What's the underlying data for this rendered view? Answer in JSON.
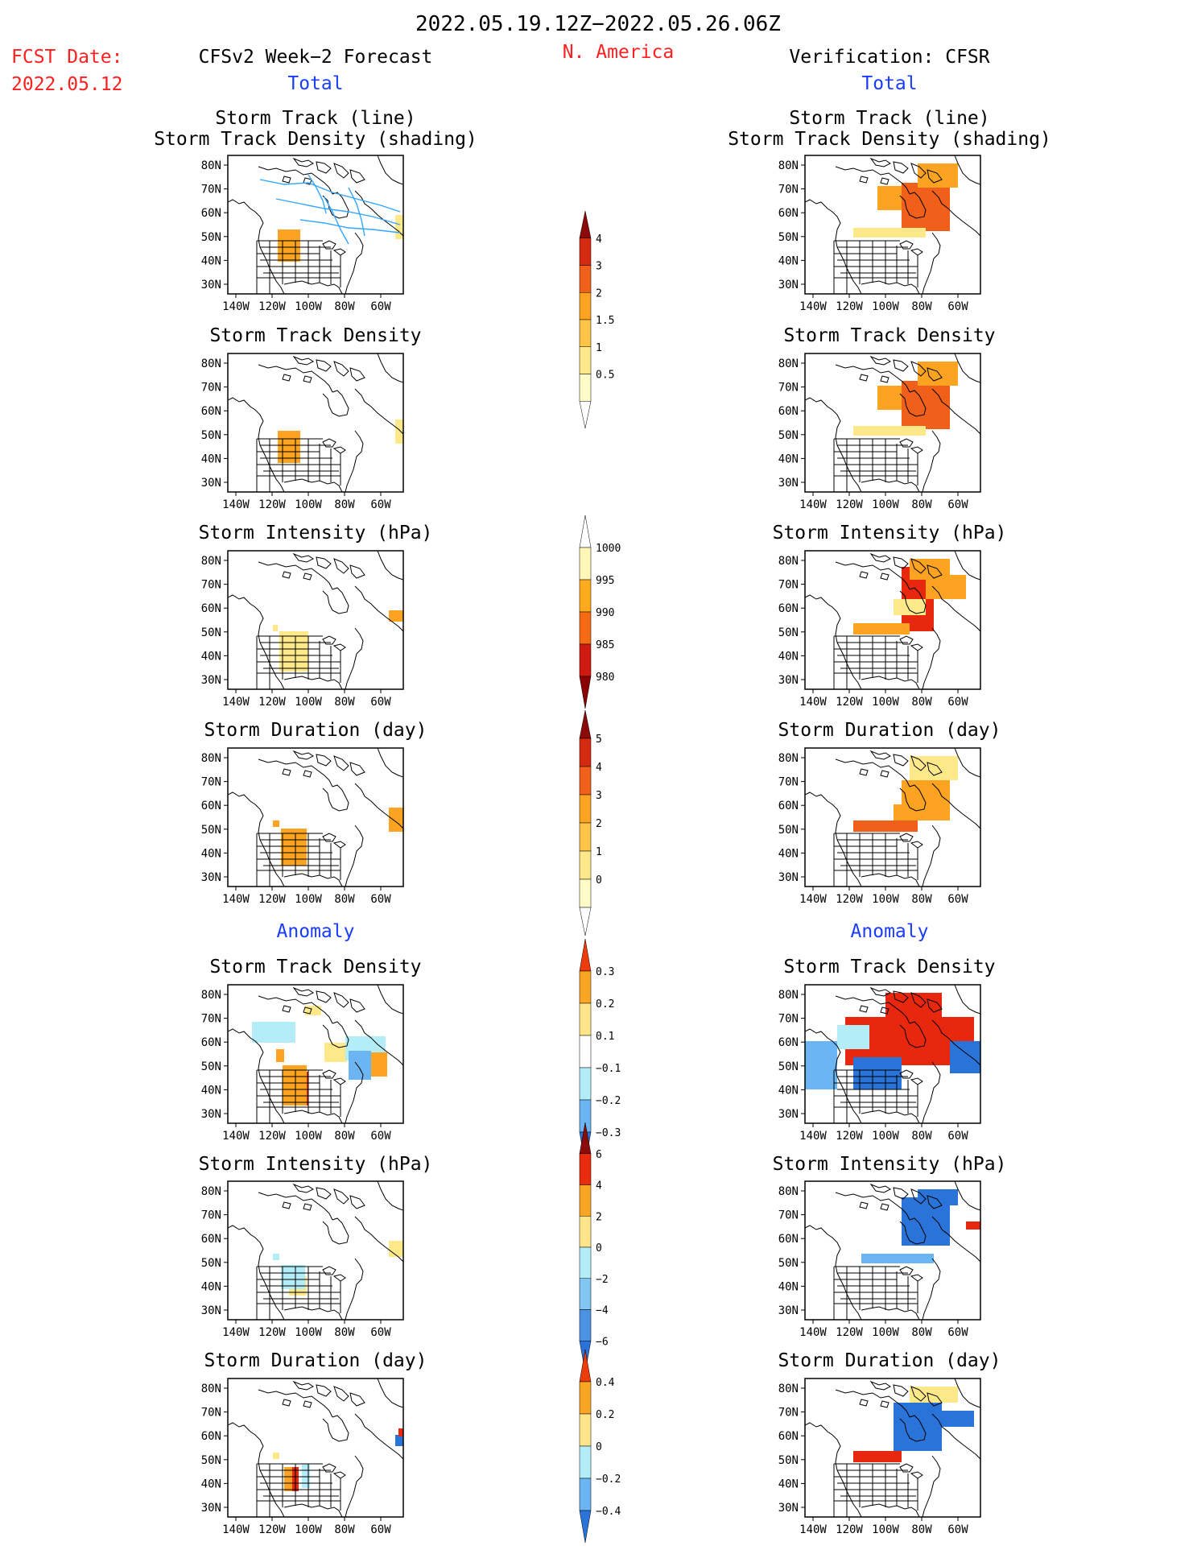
{
  "header": {
    "date_range": "2022.05.19.12Z−2022.05.26.06Z",
    "fcst_label": "FCST Date:",
    "fcst_date": "2022.05.12",
    "forecast_title": "CFSv2 Week−2 Forecast",
    "region": "N. America",
    "verification_title": "Verification: CFSR"
  },
  "columns": {
    "left": {
      "total_label": "Total",
      "anomaly_label": "Anomaly"
    },
    "right": {
      "total_label": "Total",
      "anomaly_label": "Anomaly"
    }
  },
  "panels": {
    "total": [
      {
        "title1": "Storm Track (line)",
        "title2": "Storm Track Density (shading)"
      },
      {
        "title1": "Storm Track Density"
      },
      {
        "title1": "Storm Intensity (hPa)"
      },
      {
        "title1": "Storm Duration (day)"
      }
    ],
    "anomaly": [
      {
        "title1": "Storm Track Density"
      },
      {
        "title1": "Storm Intensity (hPa)"
      },
      {
        "title1": "Storm Duration (day)"
      }
    ]
  },
  "axes": {
    "lat_ticks": [
      "80N",
      "70N",
      "60N",
      "50N",
      "40N",
      "30N"
    ],
    "lon_ticks": [
      "140W",
      "120W",
      "100W",
      "80W",
      "60W"
    ]
  },
  "colorbars": [
    {
      "id": "density",
      "labels": [
        "4",
        "3",
        "2",
        "1.5",
        "1",
        "0.5"
      ],
      "colors": [
        "#8b0a0a",
        "#d42a0f",
        "#f0601a",
        "#fca322",
        "#fdc548",
        "#fee98a",
        "#fffbc8",
        "#ffffff"
      ]
    },
    {
      "id": "intensity",
      "labels": [
        "1000",
        "995",
        "990",
        "985",
        "980"
      ],
      "colors": [
        "#ffffff",
        "#fff6b8",
        "#fdaa1c",
        "#f56a12",
        "#cf1a12",
        "#8b0000"
      ]
    },
    {
      "id": "duration",
      "labels": [
        "5",
        "4",
        "3",
        "2",
        "1",
        "0"
      ],
      "colors": [
        "#8b0a0a",
        "#d42a0f",
        "#f0601a",
        "#fca322",
        "#fdc548",
        "#fee98a",
        "#fffbc8",
        "#ffffff"
      ]
    },
    {
      "id": "density-anom",
      "labels": [
        "0.3",
        "0.2",
        "0.1",
        "−0.1",
        "−0.2",
        "−0.3"
      ],
      "colors": [
        "#ee3b0b",
        "#fba525",
        "#ffe58a",
        "#ffffff",
        "#b3eef8",
        "#6bb6f2",
        "#2a73d8"
      ]
    },
    {
      "id": "intensity-anom",
      "labels": [
        "6",
        "4",
        "2",
        "0",
        "−2",
        "−4",
        "−6"
      ],
      "colors": [
        "#8b0a0a",
        "#ea2c0e",
        "#fba525",
        "#ffe58a",
        "#b3eef8",
        "#82c6f4",
        "#4c93e6",
        "#2a73d8"
      ]
    },
    {
      "id": "duration-anom",
      "labels": [
        "0.4",
        "0.2",
        "0",
        "−0.2",
        "−0.4"
      ],
      "colors": [
        "#ee3b0b",
        "#fba525",
        "#ffe58a",
        "#b3eef8",
        "#6bb6f2",
        "#2a73d8"
      ]
    }
  ],
  "colors": {
    "title_red": "#ff2020",
    "label_blue": "#1a3cff",
    "track_line": "#33a6ff",
    "orange_dark": "#f0601a",
    "orange": "#fca322",
    "yellow": "#fee98a",
    "red": "#e8280e",
    "blue_light": "#b3eef8",
    "blue_mid": "#6bb6f2",
    "blue_dark": "#2a73d8"
  }
}
